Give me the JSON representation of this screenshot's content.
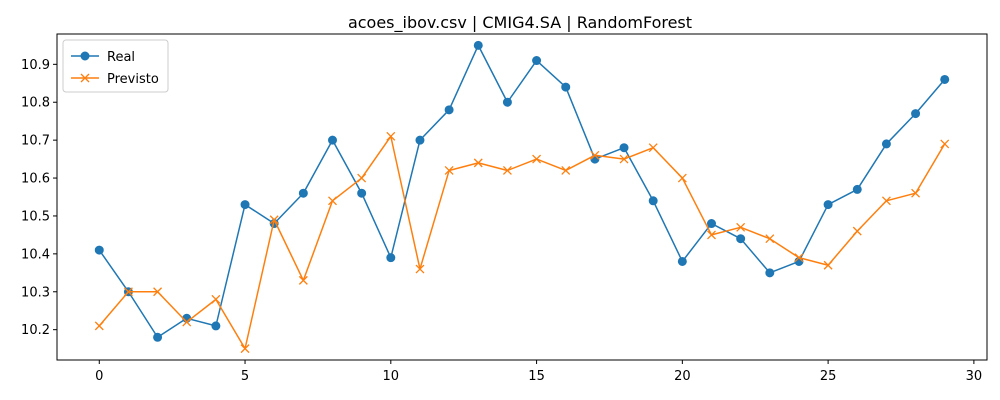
{
  "chart_data": {
    "type": "line",
    "title": "acoes_ibov.csv | CMIG4.SA | RandomForest",
    "xlabel": "",
    "ylabel": "",
    "xlim": [
      -1.45,
      30.45
    ],
    "ylim": [
      10.12,
      10.98
    ],
    "xticks": [
      0,
      5,
      10,
      15,
      20,
      25,
      30
    ],
    "xtick_labels": [
      "0",
      "5",
      "10",
      "15",
      "20",
      "25",
      "30"
    ],
    "yticks": [
      10.2,
      10.3,
      10.4,
      10.5,
      10.6,
      10.7,
      10.8,
      10.9
    ],
    "ytick_labels": [
      "10.2",
      "10.3",
      "10.4",
      "10.5",
      "10.6",
      "10.7",
      "10.8",
      "10.9"
    ],
    "grid": false,
    "legend_position": "upper-left",
    "x": [
      0,
      1,
      2,
      3,
      4,
      5,
      6,
      7,
      8,
      9,
      10,
      11,
      12,
      13,
      14,
      15,
      16,
      17,
      18,
      19,
      20,
      21,
      22,
      23,
      24,
      25,
      26,
      27,
      28,
      29
    ],
    "series": [
      {
        "name": "Real",
        "color": "#1f77b4",
        "marker": "circle",
        "values": [
          10.41,
          10.3,
          10.18,
          10.23,
          10.21,
          10.53,
          10.48,
          10.56,
          10.7,
          10.56,
          10.39,
          10.7,
          10.78,
          10.95,
          10.8,
          10.91,
          10.84,
          10.65,
          10.68,
          10.54,
          10.38,
          10.48,
          10.44,
          10.35,
          10.38,
          10.53,
          10.57,
          10.69,
          10.77,
          10.86
        ]
      },
      {
        "name": "Previsto",
        "color": "#ff7f0e",
        "marker": "x",
        "values": [
          10.21,
          10.3,
          10.3,
          10.22,
          10.28,
          10.15,
          10.49,
          10.33,
          10.54,
          10.6,
          10.71,
          10.36,
          10.62,
          10.64,
          10.62,
          10.65,
          10.62,
          10.66,
          10.65,
          10.68,
          10.6,
          10.45,
          10.47,
          10.44,
          10.39,
          10.37,
          10.46,
          10.54,
          10.56,
          10.69
        ]
      }
    ]
  }
}
